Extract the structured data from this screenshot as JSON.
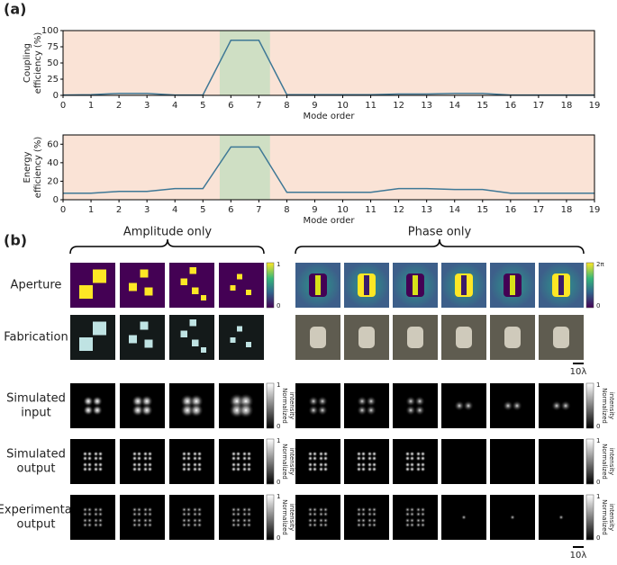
{
  "panel_a_label": "(a)",
  "panel_b_label": "(b)",
  "chart_data": [
    {
      "type": "line",
      "ylabel": [
        "Coupling",
        "efficiency (%)"
      ],
      "xlabel": "Mode order",
      "x": [
        0,
        1,
        2,
        3,
        4,
        5,
        6,
        7,
        8,
        9,
        10,
        11,
        12,
        13,
        14,
        15,
        16,
        17,
        18,
        19
      ],
      "values": [
        0.5,
        1,
        3,
        3,
        0.5,
        0.5,
        85,
        85,
        1,
        1,
        1,
        1,
        2,
        2,
        3,
        3,
        0.5,
        0.5,
        0.5,
        0.5
      ],
      "color": "#3f7896",
      "xlim": [
        0,
        19
      ],
      "xticks": [
        0,
        1,
        2,
        3,
        4,
        5,
        6,
        7,
        8,
        9,
        10,
        11,
        12,
        13,
        14,
        15,
        16,
        17,
        18,
        19
      ],
      "ylim": [
        0,
        100
      ],
      "yticks": [
        0,
        25,
        50,
        75,
        100
      ],
      "highlight": [
        5.6,
        7.4
      ]
    },
    {
      "type": "line",
      "ylabel": [
        "Energy",
        "efficiency (%)"
      ],
      "xlabel": "Mode order",
      "x": [
        0,
        1,
        2,
        3,
        4,
        5,
        6,
        7,
        8,
        9,
        10,
        11,
        12,
        13,
        14,
        15,
        16,
        17,
        18,
        19
      ],
      "values": [
        7,
        7,
        9,
        9,
        12,
        12,
        57,
        57,
        8,
        8,
        8,
        8,
        12,
        12,
        11,
        11,
        7,
        7,
        7,
        7
      ],
      "color": "#3f7896",
      "xlim": [
        0,
        19
      ],
      "xticks": [
        0,
        1,
        2,
        3,
        4,
        5,
        6,
        7,
        8,
        9,
        10,
        11,
        12,
        13,
        14,
        15,
        16,
        17,
        18,
        19
      ],
      "ylim": [
        0,
        70
      ],
      "yticks": [
        0,
        20,
        40,
        60
      ],
      "highlight": [
        5.6,
        7.4
      ]
    }
  ],
  "group_labels": [
    "Amplitude only",
    "Phase only"
  ],
  "row_labels": [
    [
      "Aperture"
    ],
    [
      "Fabrication"
    ],
    [
      "Simulated",
      "input"
    ],
    [
      "Simulated",
      "output"
    ],
    [
      "Experimental",
      "output"
    ]
  ],
  "amplitude_colorbar": {
    "max": "1",
    "min": "0"
  },
  "phase_colorbar": {
    "max": "2π",
    "min": "0"
  },
  "intensity_colorbar": {
    "max": "1",
    "min": "0",
    "label": [
      "Normalized",
      "intensity"
    ]
  },
  "scale_bar": "10λ"
}
